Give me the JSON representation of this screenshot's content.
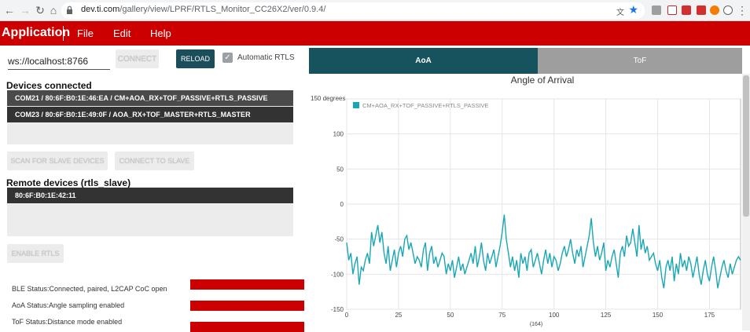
{
  "browser": {
    "url_host": "dev.ti.com",
    "url_path": "/gallery/view/LPRF/RTLS_Monitor_CC26X2/ver/0.9.4/"
  },
  "appbar": {
    "title": "Application",
    "menu": [
      "File",
      "Edit",
      "Help"
    ]
  },
  "connection": {
    "ws_url": "ws://localhost:8766",
    "connect_label": "CONNECT",
    "reload_label": "RELOAD",
    "auto_rtls_label": "Automatic RTLS",
    "auto_rtls_checked": true
  },
  "devices": {
    "title": "Devices connected",
    "items": [
      "COM21 / 80:6F:B0:1E:46:EA / CM+AOA_RX+TOF_PASSIVE+RTLS_PASSIVE",
      "COM23 / 80:6F:B0:1E:49:0F / AOA_RX+TOF_MASTER+RTLS_MASTER"
    ],
    "scan_label": "SCAN FOR SLAVE DEVICES",
    "connect_slave_label": "CONNECT TO SLAVE"
  },
  "remote": {
    "title": "Remote devices (rtls_slave)",
    "items": [
      "80:6F:B0:1E:42:11"
    ],
    "enable_label": "ENABLE RTLS"
  },
  "status": {
    "ble": "BLE Status:Connected, paired, L2CAP CoC open",
    "aoa": "AoA Status:Angle sampling enabled",
    "tof": "ToF Status:Distance mode enabled",
    "bar_color": "#cc0000"
  },
  "tabs": {
    "aoa": "AoA",
    "tof": "ToF"
  },
  "chart_data": {
    "type": "line",
    "title": "Angle of Arrival",
    "ylabel": "degrees",
    "xlabel": "(164)",
    "xlim": [
      0,
      190
    ],
    "ylim": [
      -150,
      150
    ],
    "xticks": [
      0,
      25,
      50,
      75,
      100,
      125,
      150,
      175
    ],
    "yticks": [
      -150,
      -100,
      -50,
      0,
      50,
      100,
      150
    ],
    "grid": true,
    "legend": "top-left",
    "series": [
      {
        "name": "CM+AOA_RX+TOF_PASSIVE+RTLS_PASSIVE",
        "color": "#1aa7b3",
        "y": [
          -55,
          -80,
          -70,
          -100,
          -85,
          -75,
          -115,
          -90,
          -95,
          -80,
          -70,
          -85,
          -40,
          -60,
          -45,
          -30,
          -55,
          -40,
          -70,
          -85,
          -60,
          -95,
          -80,
          -65,
          -90,
          -70,
          -60,
          -75,
          -50,
          -45,
          -65,
          -55,
          -70,
          -85,
          -75,
          -80,
          -90,
          -65,
          -55,
          -95,
          -70,
          -60,
          -85,
          -75,
          -90,
          -80,
          -70,
          -75,
          -100,
          -85,
          -95,
          -80,
          -105,
          -90,
          -75,
          -95,
          -85,
          -100,
          -90,
          -80,
          -70,
          -85,
          -60,
          -90,
          -75,
          -55,
          -80,
          -95,
          -70,
          -85,
          -75,
          -65,
          -90,
          -75,
          -60,
          -40,
          -15,
          -50,
          -70,
          -90,
          -75,
          -95,
          -80,
          -105,
          -70,
          -85,
          -75,
          -95,
          -70,
          -65,
          -90,
          -80,
          -70,
          -85,
          -100,
          -80,
          -65,
          -85,
          -70,
          -90,
          -75,
          -80,
          -95,
          -85,
          -70,
          -60,
          -75,
          -65,
          -50,
          -70,
          -85,
          -65,
          -75,
          -60,
          -90,
          -75,
          -60,
          -45,
          -20,
          -55,
          -75,
          -60,
          -80,
          -70,
          -55,
          -95,
          -80,
          -90,
          -75,
          -65,
          -85,
          -105,
          -70,
          -60,
          -75,
          -45,
          -60,
          -55,
          -35,
          -55,
          -75,
          -30,
          -65,
          -50,
          -70,
          -60,
          -80,
          -75,
          -70,
          -85,
          -95,
          -80,
          -105,
          -120,
          -90,
          -80,
          -95,
          -75,
          -110,
          -85,
          -100,
          -70,
          -90,
          -80,
          -95,
          -75,
          -85,
          -105,
          -90,
          -75,
          -100,
          -115,
          -95,
          -80,
          -100,
          -110,
          -90,
          -75,
          -95,
          -120,
          -105,
          -90,
          -80,
          -95,
          -105,
          -85,
          -100,
          -90,
          -80,
          -75,
          -80
        ]
      }
    ]
  }
}
